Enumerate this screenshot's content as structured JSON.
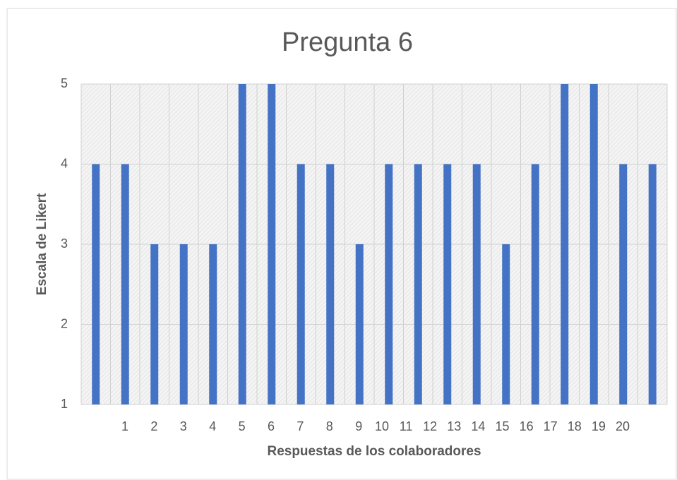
{
  "chart_data": {
    "type": "bar",
    "title": "Pregunta 6",
    "x_label": "Respuestas de los colaboradores",
    "y_label": "Escala de Likert",
    "categories": [
      "1",
      "2",
      "3",
      "4",
      "5",
      "6",
      "7",
      "8",
      "9",
      "10",
      "11",
      "12",
      "13",
      "14",
      "15",
      "16",
      "17",
      "18",
      "19",
      "20"
    ],
    "values": [
      4,
      4,
      3,
      3,
      3,
      5,
      5,
      4,
      4,
      3,
      4,
      4,
      4,
      4,
      3,
      4,
      5,
      5,
      4,
      4
    ],
    "color": "#4472c4",
    "ylim": [
      1,
      5
    ],
    "yticks": [
      1,
      2,
      3,
      4,
      5
    ],
    "grid": true
  }
}
